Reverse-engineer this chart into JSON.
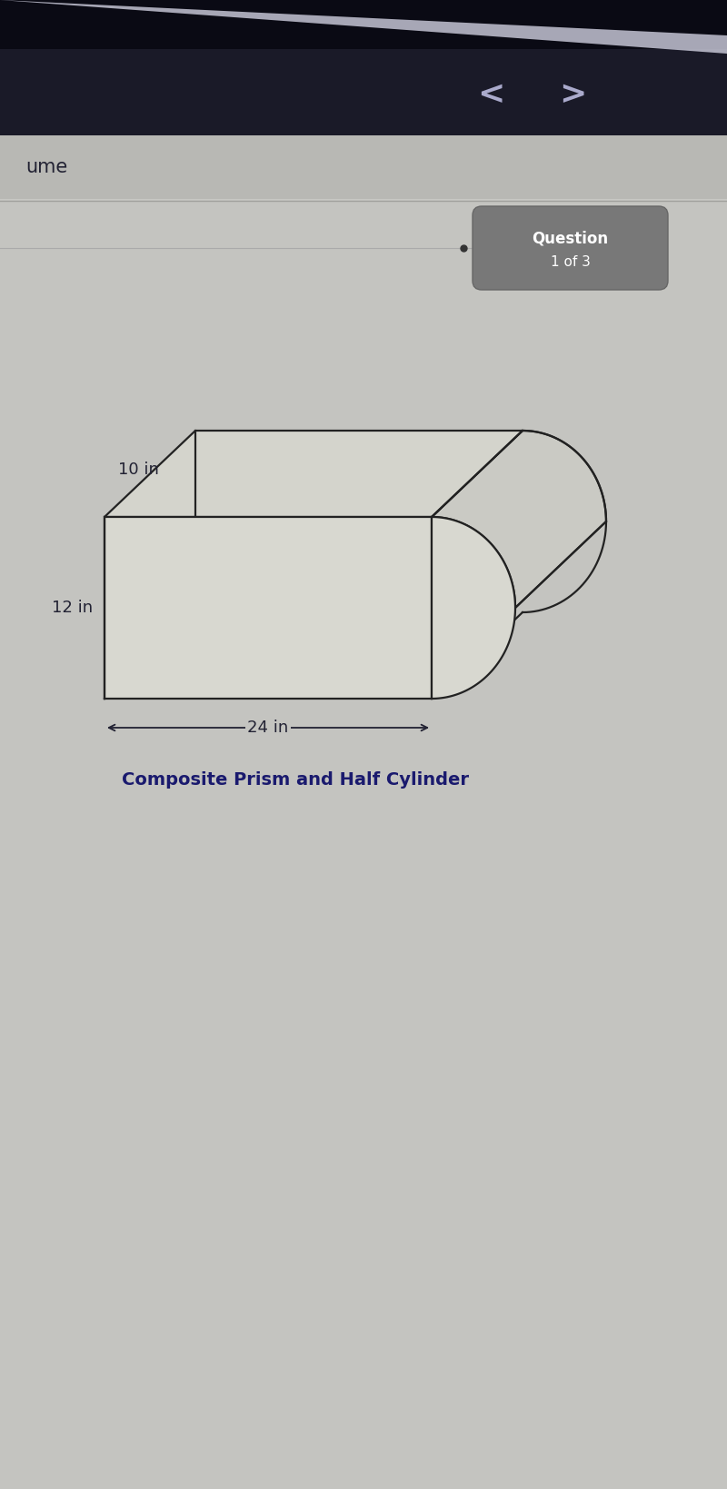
{
  "bg_main_color": "#c8c8c4",
  "bg_top_black": "#0a0a14",
  "bg_nav_dark": "#1a1a28",
  "bg_header_band": "#b8b8b4",
  "question_badge_bg": "#787878",
  "question_badge_text_color": "#ffffff",
  "question_badge_text1": "Question",
  "question_badge_text2": "1 of 3",
  "label_ume": "ume",
  "dim_10": "10 in",
  "dim_12": "12 in",
  "dim_24": "24 in",
  "caption": "Composite Prism and Half Cylinder",
  "caption_color": "#1a1a6e",
  "caption_fontsize": 14,
  "dim_fontsize": 13,
  "label_color": "#222233",
  "figure_width": 8.0,
  "figure_height": 16.39,
  "prism_fill": "#d8d8d0",
  "prism_top_fill": "#d0d0cc",
  "prism_edge_color": "#222222",
  "line_width": 1.6,
  "nav_arrow_color": "#aaaacc",
  "dot_color": "#333333"
}
